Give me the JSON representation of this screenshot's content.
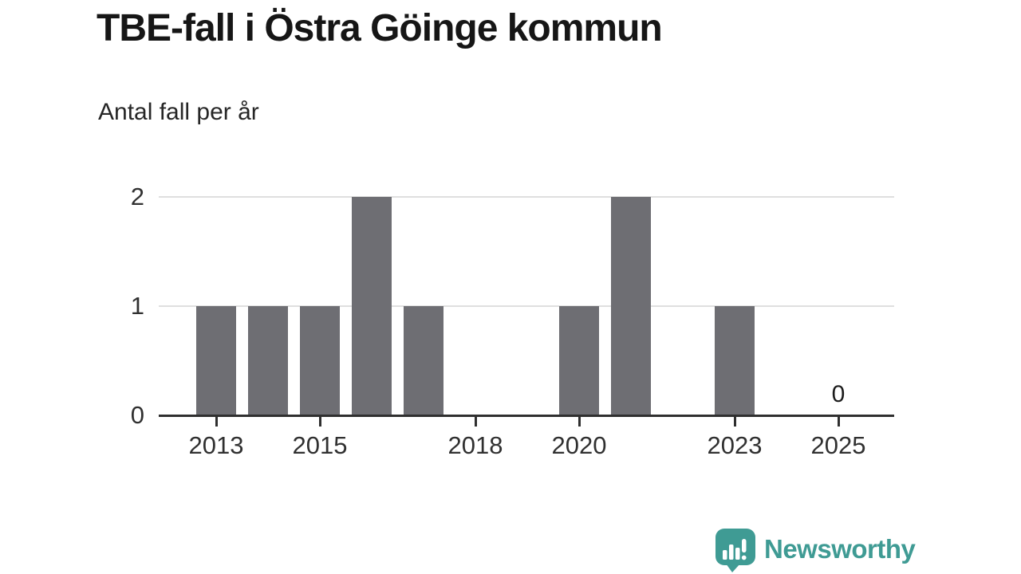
{
  "header": {
    "title": "TBE-fall i Östra Göinge kommun",
    "subtitle": "Antal fall per år"
  },
  "chart_data": {
    "type": "bar",
    "title": "TBE-fall i Östra Göinge kommun",
    "subtitle_as_ylabel": "Antal fall per år",
    "categories": [
      2013,
      2014,
      2015,
      2016,
      2017,
      2018,
      2019,
      2020,
      2021,
      2022,
      2023,
      2024,
      2025
    ],
    "values": [
      1,
      1,
      1,
      2,
      1,
      0,
      0,
      1,
      2,
      0,
      1,
      0,
      0
    ],
    "xlabel": "",
    "ylabel": "Antal fall per år",
    "ylim": [
      0,
      2
    ],
    "yticks": [
      0,
      1,
      2
    ],
    "xtick_labels": [
      "2013",
      "2015",
      "2018",
      "2020",
      "2023",
      "2025"
    ],
    "annotations": [
      {
        "category": 2025,
        "label": "0"
      }
    ],
    "legend": "none",
    "grid": "horizontal",
    "colors": {
      "bar": "#6e6e73",
      "gridline": "#dfdfdf",
      "axis": "#2f2f2f",
      "tick_text": "#303030"
    }
  },
  "footer": {
    "brand": "Newsworthy",
    "logo_icon": "speech-bubble-bar-chart-icon",
    "brand_color": "#3f9b94"
  }
}
